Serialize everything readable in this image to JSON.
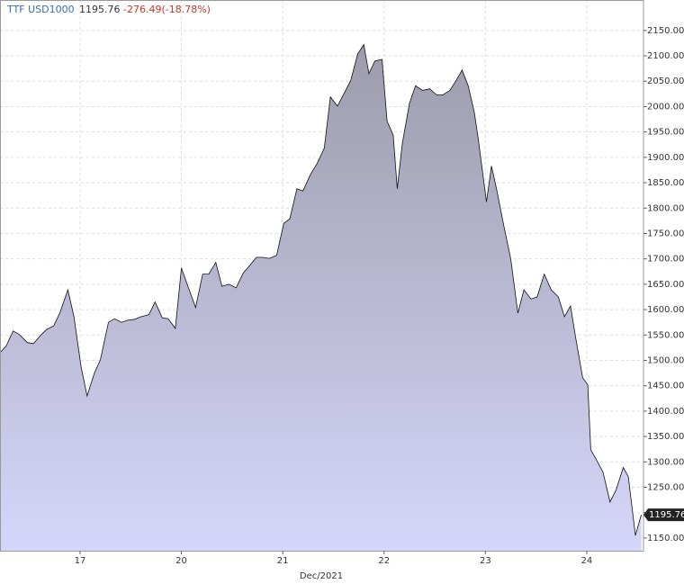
{
  "header": {
    "symbol": "TTF USD1000",
    "change": "-276.49(-18.78%)"
  },
  "chart_data": {
    "type": "area",
    "x_axis_label": "Dec/2021",
    "x": [
      0.21,
      0.27,
      0.34,
      0.4,
      0.48,
      0.54,
      0.61,
      0.67,
      0.74,
      0.8,
      0.88,
      0.94,
      1.01,
      1.07,
      1.14,
      1.2,
      1.28,
      1.34,
      1.41,
      1.47,
      1.54,
      1.6,
      1.68,
      1.74,
      1.81,
      1.87,
      1.94,
      2.0,
      2.07,
      2.14,
      2.21,
      2.27,
      2.34,
      2.4,
      2.47,
      2.54,
      2.61,
      2.67,
      2.74,
      2.8,
      2.87,
      2.94,
      3.01,
      3.07,
      3.14,
      3.2,
      3.27,
      3.34,
      3.41,
      3.47,
      3.54,
      3.6,
      3.67,
      3.74,
      3.8,
      3.85,
      3.91,
      3.98,
      4.03,
      4.09,
      4.13,
      4.18,
      4.25,
      4.31,
      4.38,
      4.45,
      4.52,
      4.58,
      4.65,
      4.71,
      4.77,
      4.83,
      4.89,
      4.93,
      5.01,
      5.06,
      5.11,
      5.18,
      5.25,
      5.32,
      5.38,
      5.45,
      5.51,
      5.58,
      5.65,
      5.72,
      5.78,
      5.84,
      5.89,
      5.96,
      6.01,
      6.04,
      6.09,
      6.16,
      6.23,
      6.29,
      6.36,
      6.41,
      6.48,
      6.53,
      6.54
    ],
    "series": [
      {
        "name": "TTF USD1000",
        "color": "#111111",
        "values": [
          1515,
          1528,
          1558,
          1551,
          1535,
          1533,
          1549,
          1561,
          1568,
          1593,
          1639,
          1586,
          1487,
          1430,
          1474,
          1501,
          1575,
          1582,
          1575,
          1579,
          1581,
          1586,
          1590,
          1615,
          1584,
          1582,
          1563,
          1682,
          1643,
          1604,
          1670,
          1670,
          1693,
          1646,
          1650,
          1643,
          1672,
          1686,
          1703,
          1703,
          1701,
          1707,
          1770,
          1779,
          1838,
          1834,
          1865,
          1888,
          1918,
          2019,
          2001,
          2024,
          2051,
          2104,
          2122,
          2065,
          2090,
          2093,
          1971,
          1944,
          1838,
          1927,
          2006,
          2041,
          2032,
          2035,
          2023,
          2023,
          2032,
          2051,
          2072,
          2041,
          1989,
          1935,
          1812,
          1883,
          1838,
          1767,
          1700,
          1593,
          1639,
          1621,
          1625,
          1670,
          1639,
          1625,
          1586,
          1607,
          1545,
          1466,
          1452,
          1324,
          1306,
          1280,
          1221,
          1245,
          1289,
          1271,
          1155,
          1190,
          1195.76
        ]
      }
    ],
    "xlim": [
      0.21,
      6.56
    ],
    "xticks": [
      {
        "value": 1,
        "label": "17"
      },
      {
        "value": 2,
        "label": "20"
      },
      {
        "value": 3,
        "label": "21"
      },
      {
        "value": 4,
        "label": "22"
      },
      {
        "value": 5,
        "label": "23"
      },
      {
        "value": 6,
        "label": "24"
      }
    ],
    "ylim": [
      1125,
      2210
    ],
    "yticks": [
      {
        "value": 1150,
        "label": "1150.00"
      },
      {
        "value": 1200,
        "label": "1200.00"
      },
      {
        "value": 1250,
        "label": "1250.00"
      },
      {
        "value": 1300,
        "label": "1300.00"
      },
      {
        "value": 1350,
        "label": "1350.00"
      },
      {
        "value": 1400,
        "label": "1400.00"
      },
      {
        "value": 1450,
        "label": "1450.00"
      },
      {
        "value": 1500,
        "label": "1500.00"
      },
      {
        "value": 1550,
        "label": "1550.00"
      },
      {
        "value": 1600,
        "label": "1600.00"
      },
      {
        "value": 1650,
        "label": "1650.00"
      },
      {
        "value": 1700,
        "label": "1700.00"
      },
      {
        "value": 1750,
        "label": "1750.00"
      },
      {
        "value": 1800,
        "label": "1800.00"
      },
      {
        "value": 1850,
        "label": "1850.00"
      },
      {
        "value": 1900,
        "label": "1900.00"
      },
      {
        "value": 1950,
        "label": "1950.00"
      },
      {
        "value": 2000,
        "label": "2000.00"
      },
      {
        "value": 2050,
        "label": "2050.00"
      },
      {
        "value": 2100,
        "label": "2100.00"
      },
      {
        "value": 2150,
        "label": "2150.00"
      }
    ],
    "grid": true,
    "area_top_color": "#9c9cac",
    "area_bottom_color": "#d6d6fa"
  }
}
